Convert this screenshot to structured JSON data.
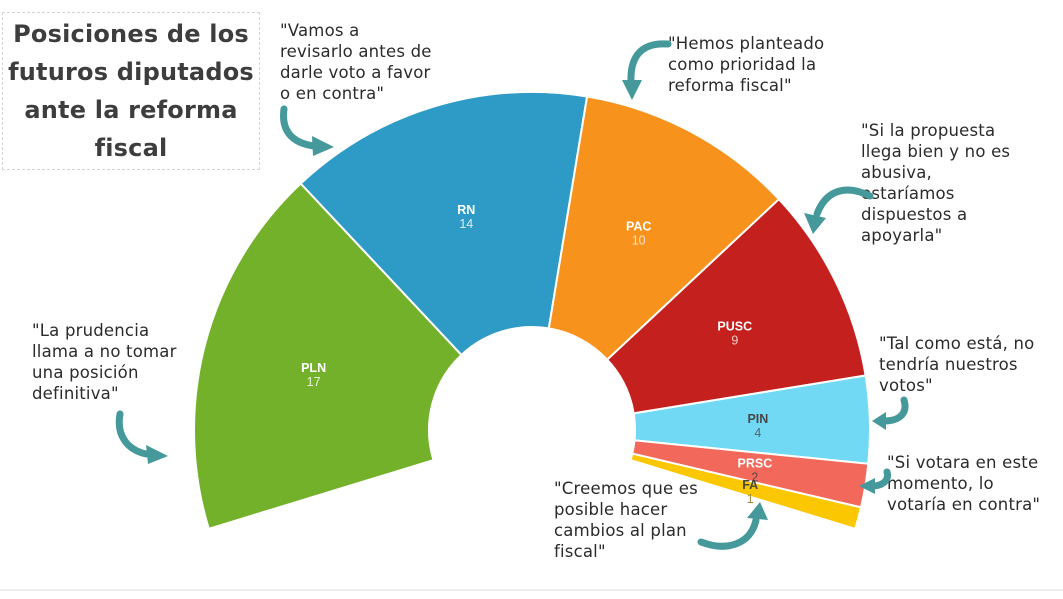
{
  "title": {
    "text": "Posiciones de los\nfuturos diputados\nante la reforma\nfiscal"
  },
  "colors": {
    "background": "#ffffff",
    "arrow": "#45999B",
    "title_text": "#3d3d3d",
    "quote_text": "#2b2b2b",
    "title_border": "#d4d4d4",
    "bottom_rule": "#ededed",
    "segment_divider": "#ffffff"
  },
  "chart_data": {
    "type": "pie",
    "variant": "half-donut-parliament",
    "title": "Posiciones de los futuros diputados ante la reforma fiscal",
    "total_seats": 57,
    "start_angle_deg": 197,
    "span_deg": 214,
    "legend": "none",
    "segments": [
      {
        "party": "PLN",
        "value": 17,
        "color": "#74B12B",
        "label_color": "#ffffff",
        "value_color": "#e9f2dc"
      },
      {
        "party": "RN",
        "value": 14,
        "color": "#2E9BC6",
        "label_color": "#ffffff",
        "value_color": "#dcedf5"
      },
      {
        "party": "PAC",
        "value": 10,
        "color": "#F7921D",
        "label_color": "#ffffff",
        "value_color": "#fbe3c4"
      },
      {
        "party": "PUSC",
        "value": 9,
        "color": "#C4201E",
        "label_color": "#ffffff",
        "value_color": "#efd0cd"
      },
      {
        "party": "PIN",
        "value": 4,
        "color": "#72D9F5",
        "label_color": "#474747",
        "value_color": "#55666d"
      },
      {
        "party": "PRSC",
        "value": 2,
        "color": "#F2685B",
        "label_color": "#ffffff",
        "value_color": "#5a4a47"
      },
      {
        "party": "FA",
        "value": 1,
        "color": "#FAC700",
        "label_color": "#474738",
        "value_color": "#9a8a3a"
      }
    ]
  },
  "annotations": [
    {
      "target": "RN",
      "text": "\"Vamos a\nrevisarlo antes de\ndarle voto a favor\no en contra\""
    },
    {
      "target": "PAC",
      "text": "\"Hemos planteado\ncomo prioridad la\nreforma fiscal\""
    },
    {
      "target": "PUSC",
      "text": "\"Si la propuesta\nllega bien y no es\nabusiva,\nestaríamos\ndispuestos a\napoyarla\""
    },
    {
      "target": "PIN",
      "text": "\"Tal como está, no\ntendría nuestros\nvotos\""
    },
    {
      "target": "PRSC",
      "text": "\"Si votara en este\nmomento, lo\nvotaría en contra\""
    },
    {
      "target": "FA",
      "text": "\"Creemos que es\nposible hacer\ncambios al plan\nfiscal\""
    },
    {
      "target": "PLN",
      "text": "\"La prudencia\nllama a no tomar\nuna posición\ndefinitiva\""
    }
  ]
}
